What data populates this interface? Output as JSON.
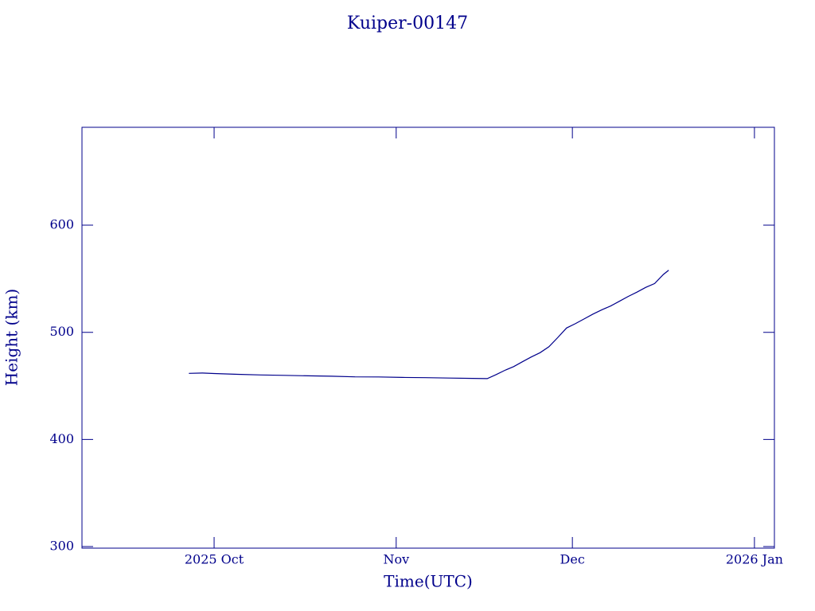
{
  "chart_data": {
    "type": "line",
    "title": "Kuiper-00147",
    "x_label": "Time(UTC)",
    "y_label": "Height (km)",
    "xlim": [
      -22.5,
      95.4
    ],
    "xticks": [
      {
        "value": 0,
        "label": "2025 Oct"
      },
      {
        "value": 31,
        "label": "Nov"
      },
      {
        "value": 61,
        "label": "Dec"
      },
      {
        "value": 92,
        "label": "2026 Jan"
      }
    ],
    "ylim": [
      298.5,
      691.4
    ],
    "yticks": [
      300,
      400,
      500,
      600
    ],
    "series": [
      {
        "name": "Kuiper-00147",
        "color": "#00008b",
        "x": [
          -4.3,
          -2,
          0,
          4,
          8,
          12,
          16,
          20,
          24,
          28,
          32,
          36,
          40,
          44,
          46.5,
          48,
          49.5,
          51,
          52.5,
          54,
          55.5,
          57,
          58.5,
          60,
          61.5,
          63,
          64.5,
          66,
          67.5,
          69,
          70.5,
          72,
          73.5,
          75,
          76.5,
          77.4
        ],
        "values": [
          461.7,
          462.0,
          461.5,
          460.8,
          460.2,
          459.8,
          459.4,
          459.0,
          458.4,
          458.3,
          457.9,
          457.7,
          457.3,
          457.0,
          456.8,
          460.5,
          464.5,
          468.0,
          472.5,
          477.0,
          481.0,
          486.5,
          495.0,
          504.0,
          508.0,
          512.5,
          517.0,
          521.0,
          524.5,
          529.0,
          533.5,
          537.5,
          542.0,
          545.5,
          554.0,
          558.0
        ]
      }
    ]
  }
}
